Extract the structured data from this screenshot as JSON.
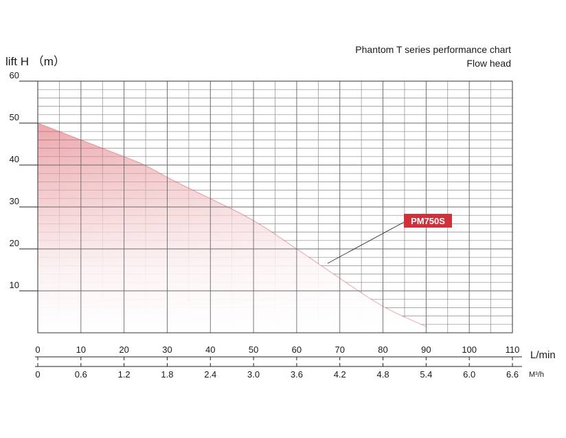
{
  "chart_data": {
    "type": "area",
    "title": "Phantom T series performance chart",
    "subtitle": "Flow head",
    "ylabel": "lift H （m）",
    "ylim": [
      0,
      60
    ],
    "y_ticks": [
      "10",
      "20",
      "30",
      "40",
      "50",
      "60"
    ],
    "y_minor_step": 2,
    "xlim": [
      0,
      110
    ],
    "x_minor_step": 5,
    "x_ticks_primary": [
      "0",
      "10",
      "20",
      "30",
      "40",
      "50",
      "60",
      "70",
      "80",
      "90",
      "100",
      "110"
    ],
    "x_unit_primary": "L/min",
    "x_ticks_secondary": [
      "0",
      "0.6",
      "1.2",
      "1.8",
      "2.4",
      "3.0",
      "3.6",
      "4.2",
      "4.8",
      "5.4",
      "6.0",
      "6.6"
    ],
    "x_unit_secondary": "M³/h",
    "grid": true,
    "series": [
      {
        "name": "PM750S",
        "color": "#d0303a",
        "x": [
          0,
          10,
          20,
          25,
          30,
          40,
          50,
          60,
          70,
          80,
          90
        ],
        "y": [
          50,
          46,
          42,
          40,
          37,
          32,
          27,
          20,
          13,
          6,
          1.5
        ]
      }
    ]
  }
}
